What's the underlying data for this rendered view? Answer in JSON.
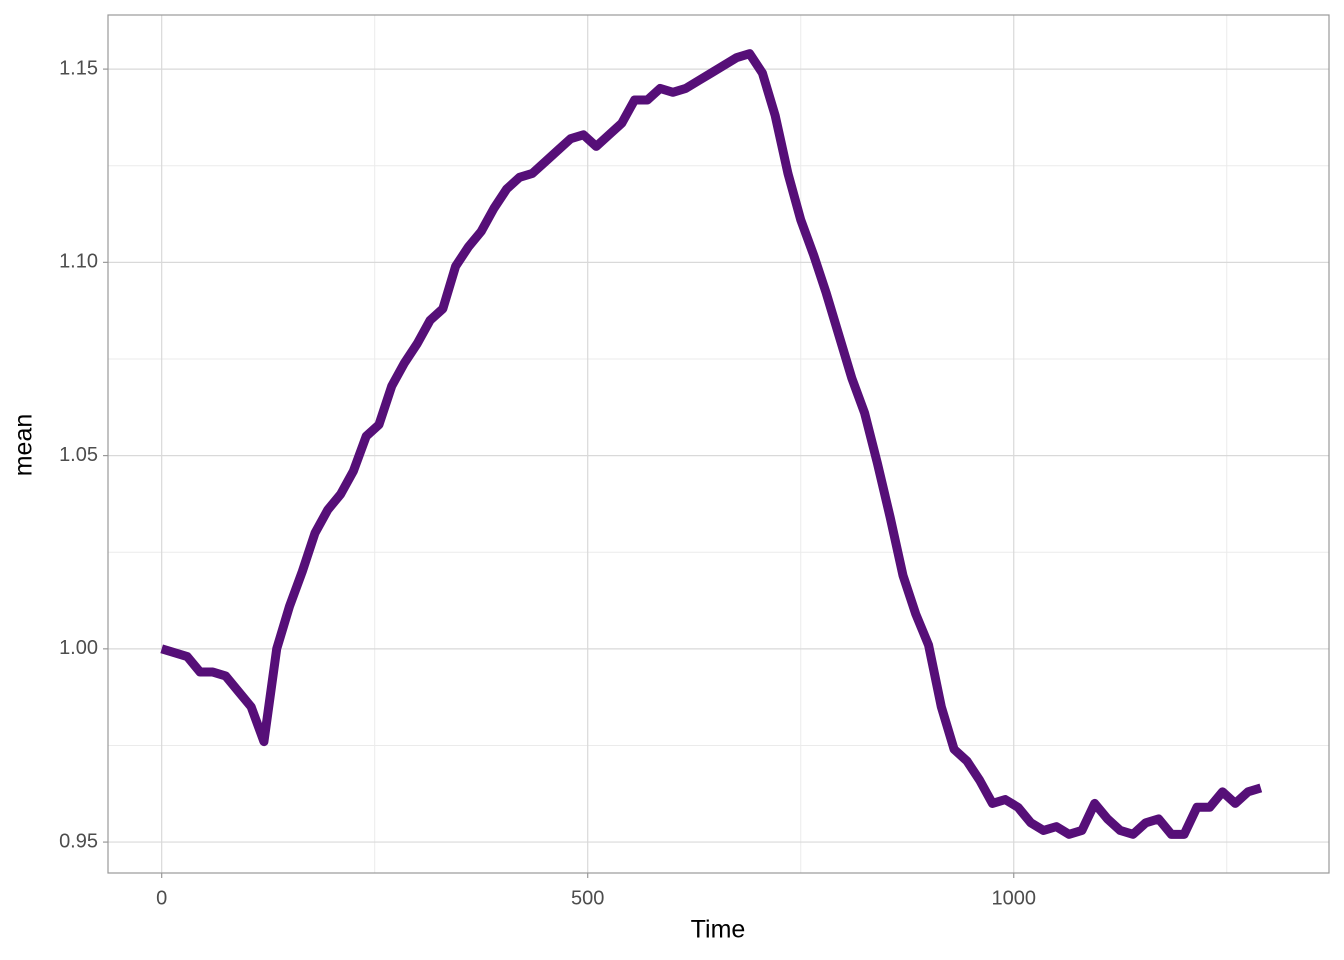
{
  "chart_data": {
    "type": "line",
    "xlabel": "Time",
    "ylabel": "mean",
    "x": [
      0,
      15,
      30,
      45,
      60,
      75,
      90,
      105,
      120,
      135,
      150,
      165,
      180,
      195,
      210,
      225,
      240,
      255,
      270,
      285,
      300,
      315,
      330,
      345,
      360,
      375,
      390,
      405,
      420,
      435,
      450,
      465,
      480,
      495,
      510,
      525,
      540,
      555,
      570,
      585,
      600,
      615,
      630,
      645,
      660,
      675,
      690,
      705,
      720,
      735,
      750,
      765,
      780,
      795,
      810,
      825,
      840,
      855,
      870,
      885,
      900,
      915,
      930,
      945,
      960,
      975,
      990,
      1005,
      1020,
      1035,
      1050,
      1065,
      1080,
      1095,
      1110,
      1125,
      1140,
      1155,
      1170,
      1185,
      1200,
      1215,
      1230,
      1245,
      1260,
      1275,
      1290
    ],
    "series": [
      {
        "color": "#560f78",
        "values": [
          1.0,
          0.999,
          0.998,
          0.994,
          0.994,
          0.993,
          0.989,
          0.985,
          0.976,
          1.0,
          1.011,
          1.02,
          1.03,
          1.036,
          1.04,
          1.046,
          1.055,
          1.058,
          1.068,
          1.074,
          1.079,
          1.085,
          1.088,
          1.099,
          1.104,
          1.108,
          1.114,
          1.119,
          1.122,
          1.123,
          1.126,
          1.129,
          1.132,
          1.133,
          1.13,
          1.133,
          1.136,
          1.142,
          1.142,
          1.145,
          1.144,
          1.145,
          1.147,
          1.149,
          1.151,
          1.153,
          1.154,
          1.149,
          1.138,
          1.123,
          1.111,
          1.102,
          1.092,
          1.081,
          1.07,
          1.061,
          1.048,
          1.034,
          1.019,
          1.009,
          1.001,
          0.985,
          0.974,
          0.971,
          0.966,
          0.96,
          0.961,
          0.959,
          0.955,
          0.953,
          0.954,
          0.952,
          0.953,
          0.96,
          0.956,
          0.953,
          0.952,
          0.955,
          0.956,
          0.952,
          0.952,
          0.959,
          0.959,
          0.963,
          0.96,
          0.963,
          0.964
        ]
      }
    ],
    "xlim": [
      -63,
      1370
    ],
    "ylim": [
      0.942,
      1.164
    ],
    "xticks": [
      0,
      500,
      1000
    ],
    "yticks": [
      0.95,
      {
        "value": 1.0,
        "label": "1.00"
      },
      1.05,
      {
        "value": 1.1,
        "label": "1.10"
      },
      1.15
    ],
    "x_minor_grid": [
      250,
      750,
      1250
    ],
    "y_minor_grid": [
      0.975,
      1.025,
      1.075,
      1.125
    ],
    "grid": true
  }
}
